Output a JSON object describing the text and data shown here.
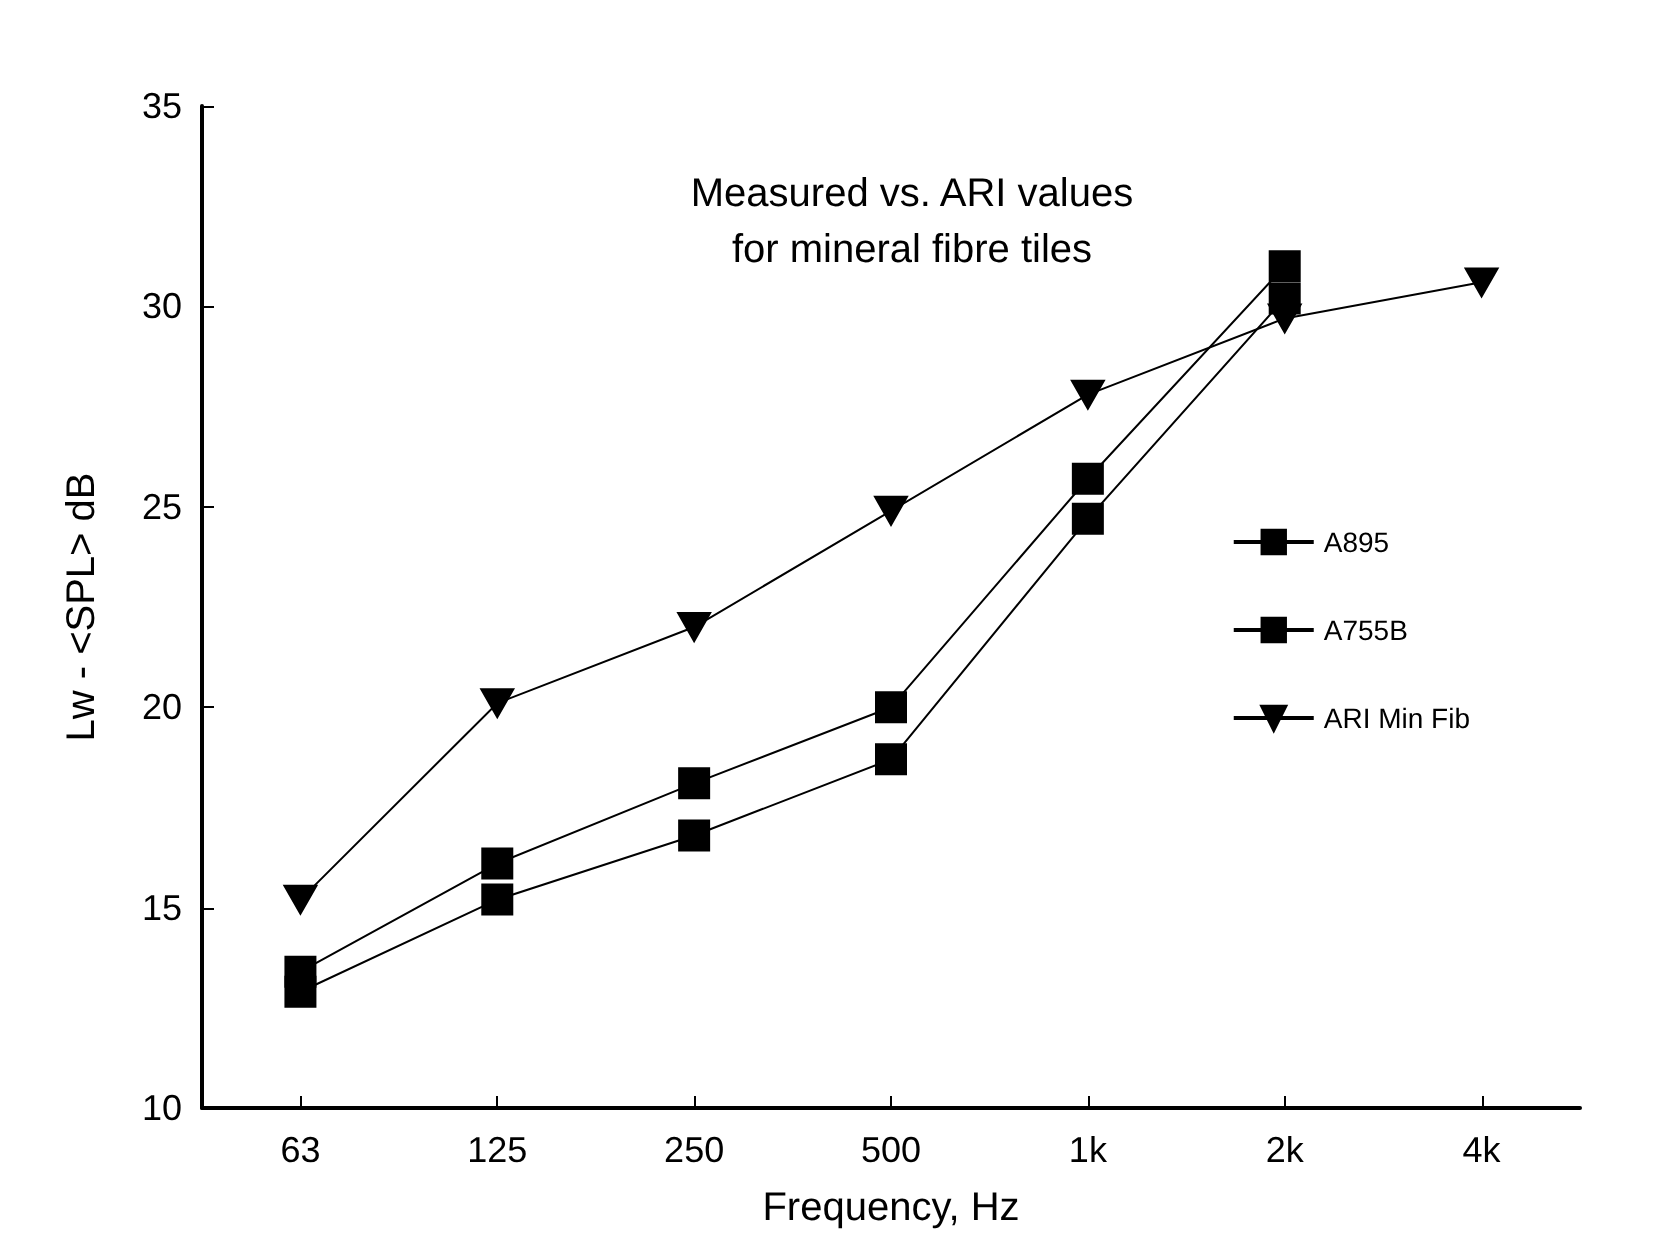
{
  "chart_data": {
    "type": "line",
    "title": "Measured vs. ARI values\nfor mineral fibre tiles",
    "xlabel": "Frequency, Hz",
    "ylabel": "Lw - <SPL> dB",
    "categories": [
      "63",
      "125",
      "250",
      "500",
      "1k",
      "2k",
      "4k"
    ],
    "series": [
      {
        "name": "A895",
        "color": "#000000",
        "marker": "square",
        "values": [
          13.4,
          16.1,
          18.1,
          20.0,
          25.7,
          31.0,
          null
        ]
      },
      {
        "name": "A755B",
        "color": "#000000",
        "marker": "square",
        "values": [
          12.9,
          15.2,
          16.8,
          18.7,
          24.7,
          30.2,
          null
        ]
      },
      {
        "name": "ARI Min Fib",
        "color": "#000000",
        "marker": "triangle",
        "values": [
          15.2,
          20.1,
          22.0,
          24.9,
          27.8,
          29.7,
          30.6
        ]
      }
    ],
    "ylim": [
      10,
      35
    ],
    "yticks": [
      10,
      15,
      20,
      25,
      30,
      35
    ],
    "grid": false,
    "legend": "right",
    "line_style": "solid"
  }
}
